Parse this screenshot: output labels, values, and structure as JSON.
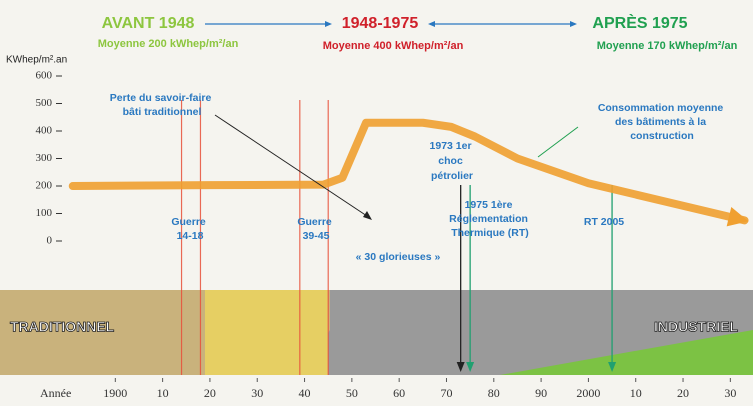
{
  "chart_data": {
    "type": "line",
    "periods": [
      {
        "title": "AVANT 1948",
        "average": "Moyenne 200 kWhep/m²/an"
      },
      {
        "title": "1948-1975",
        "average": "Moyenne 400 kWhep/m²/an"
      },
      {
        "title": "APRÈS 1975",
        "average": "Moyenne 170 kWhep/m²/an"
      }
    ],
    "y_label": "KWhep/m².an",
    "x_label": "Année",
    "x": [
      1891,
      1920,
      1944,
      1948,
      1953,
      1965,
      1971,
      1976,
      1985,
      2000,
      2033
    ],
    "series": [
      {
        "color": "#f0a030",
        "values": [
          200,
          203,
          205,
          230,
          430,
          430,
          415,
          380,
          300,
          210,
          75
        ]
      }
    ],
    "xlim": [
      1890,
      2035
    ],
    "ylim": [
      0,
      600
    ],
    "yticks": [
      0,
      100,
      200,
      300,
      400,
      500,
      600
    ],
    "xticks": [
      1900,
      {
        "value": 1910,
        "label": "10"
      },
      {
        "value": 1920,
        "label": "20"
      },
      {
        "value": 1930,
        "label": "30"
      },
      {
        "value": 1940,
        "label": "40"
      },
      {
        "value": 1950,
        "label": "50"
      },
      {
        "value": 1960,
        "label": "60"
      },
      {
        "value": 1970,
        "label": "70"
      },
      {
        "value": 1980,
        "label": "80"
      },
      {
        "value": 1990,
        "label": "90"
      },
      2000,
      {
        "value": 2010,
        "label": "10"
      },
      {
        "value": 2020,
        "label": "20"
      },
      {
        "value": 2030,
        "label": "30"
      }
    ],
    "grid": false,
    "markers": [
      {
        "x": 1914,
        "color": "#e8503a",
        "arrow": false
      },
      {
        "x": 1918,
        "color": "#e8503a",
        "arrow": false
      },
      {
        "x": 1939,
        "color": "#e8503a",
        "arrow": false
      },
      {
        "x": 1945,
        "color": "#e8503a",
        "arrow": false
      },
      {
        "x": 1973,
        "color": "#222222",
        "arrow": true
      },
      {
        "x": 1975,
        "color": "#20a070",
        "arrow": true
      },
      {
        "x": 2005,
        "color": "#20a070",
        "arrow": true
      }
    ],
    "annotations": [
      {
        "lines": [
          "Perte du savoir-faire",
          "bâti traditionnel"
        ]
      },
      {
        "lines": [
          "Consommation moyenne",
          "des bâtiments à la",
          "construction"
        ]
      },
      {
        "lines": [
          "1973 1er",
          "choc",
          "pétrolier"
        ]
      },
      {
        "lines": [
          "1975 1ère",
          "Réglementation",
          "Thermique (RT)"
        ]
      },
      {
        "lines": [
          "RT 2005"
        ]
      },
      {
        "lines": [
          "« 30 glorieuses »"
        ]
      },
      {
        "lines": [
          "Guerre",
          "14-18"
        ]
      },
      {
        "lines": [
          "Guerre",
          "39-45"
        ]
      },
      {
        "lines": [
          "TRADITIONNEL"
        ]
      },
      {
        "lines": [
          "INDUSTRIEL"
        ]
      }
    ]
  }
}
